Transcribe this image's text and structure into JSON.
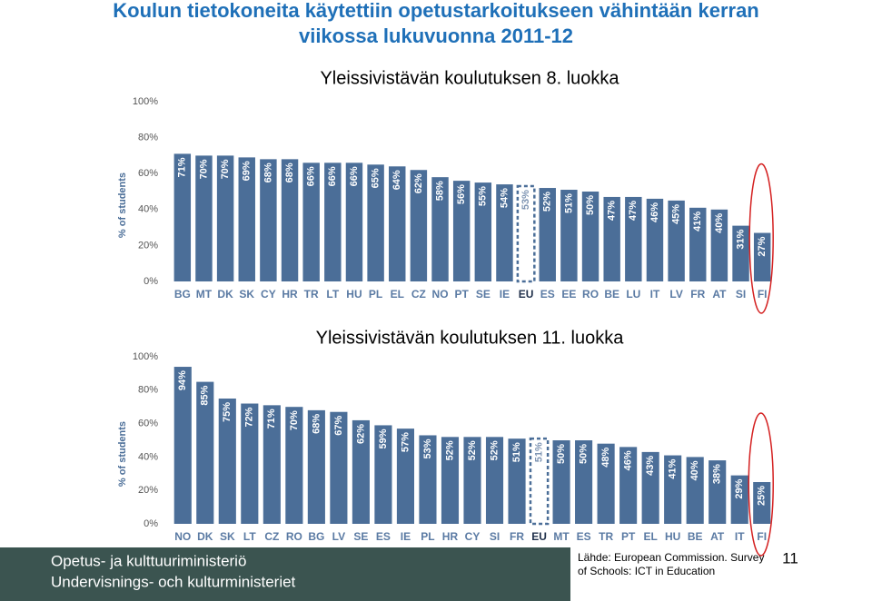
{
  "title": [
    "Koulun tietokoneita käytettiin opetustarkoitukseen vähintään kerran",
    "viikossa lukuvuonna 2011-12"
  ],
  "chart_data": [
    {
      "type": "bar",
      "title": "Yleissivistävän koulutuksen 8. luokka",
      "y_label": "% of students",
      "color": "#4b6e98",
      "categories": [
        "BG",
        "MT",
        "DK",
        "SK",
        "CY",
        "HR",
        "TR",
        "LT",
        "HU",
        "PL",
        "EL",
        "CZ",
        "NO",
        "PT",
        "SE",
        "IE",
        "EU",
        "ES",
        "EE",
        "RO",
        "BE",
        "LU",
        "IT",
        "LV",
        "FR",
        "AT",
        "SI",
        "FI"
      ],
      "values": [
        71,
        70,
        70,
        69,
        68,
        68,
        66,
        66,
        66,
        65,
        64,
        62,
        58,
        56,
        55,
        54,
        53,
        52,
        51,
        50,
        47,
        47,
        46,
        45,
        41,
        40,
        31,
        27
      ],
      "value_labels": [
        "71%",
        "70%",
        "70%",
        "69%",
        "68%",
        "68%",
        "66%",
        "66%",
        "66%",
        "65%",
        "64%",
        "62%",
        "58%",
        "56%",
        "55%",
        "54%",
        "53%",
        "52%",
        "51%",
        "50%",
        "47%",
        "47%",
        "46%",
        "45%",
        "41%",
        "40%",
        "31%",
        "27%"
      ],
      "ylim": [
        0,
        100
      ],
      "yticks": [
        {
          "value": 0,
          "label": "0%"
        },
        {
          "value": 20,
          "label": "20%"
        },
        {
          "value": 40,
          "label": "40%"
        },
        {
          "value": 60,
          "label": "60%"
        },
        {
          "value": 80,
          "label": "80%"
        },
        {
          "value": 100,
          "label": "100%"
        }
      ]
    },
    {
      "type": "bar",
      "title": "Yleissivistävän koulutuksen 11. luokka",
      "y_label": "% of students",
      "color": "#4b6e98",
      "categories": [
        "NO",
        "DK",
        "SK",
        "LT",
        "CZ",
        "RO",
        "BG",
        "LV",
        "SE",
        "ES",
        "IE",
        "PL",
        "HR",
        "CY",
        "SI",
        "FR",
        "EU",
        "MT",
        "ES",
        "TR",
        "PT",
        "EL",
        "HU",
        "BE",
        "AT",
        "IT",
        "FI"
      ],
      "values": [
        94,
        85,
        75,
        72,
        71,
        70,
        68,
        67,
        62,
        59,
        57,
        53,
        52,
        52,
        52,
        51,
        51,
        50,
        50,
        48,
        46,
        43,
        41,
        40,
        38,
        29,
        25
      ],
      "value_labels": [
        "94%",
        "85%",
        "75%",
        "72%",
        "71%",
        "70%",
        "68%",
        "67%",
        "62%",
        "59%",
        "57%",
        "53%",
        "52%",
        "52%",
        "52%",
        "51%",
        "51%",
        "50%",
        "50%",
        "48%",
        "46%",
        "43%",
        "41%",
        "40%",
        "38%",
        "29%",
        "25%"
      ],
      "ylim": [
        0,
        100
      ],
      "yticks": [
        {
          "value": 0,
          "label": "0%"
        },
        {
          "value": 20,
          "label": "20%"
        },
        {
          "value": 40,
          "label": "40%"
        },
        {
          "value": 60,
          "label": "60%"
        },
        {
          "value": 80,
          "label": "80%"
        },
        {
          "value": 100,
          "label": "100%"
        }
      ]
    }
  ],
  "footer": {
    "ministry": [
      "Opetus- ja kulttuuriministeriö",
      "Undervisnings- och kulturministeriet"
    ],
    "source": [
      "Lähde: European Commission. Survey",
      "of Schools: ICT in Education"
    ],
    "page": "11"
  }
}
